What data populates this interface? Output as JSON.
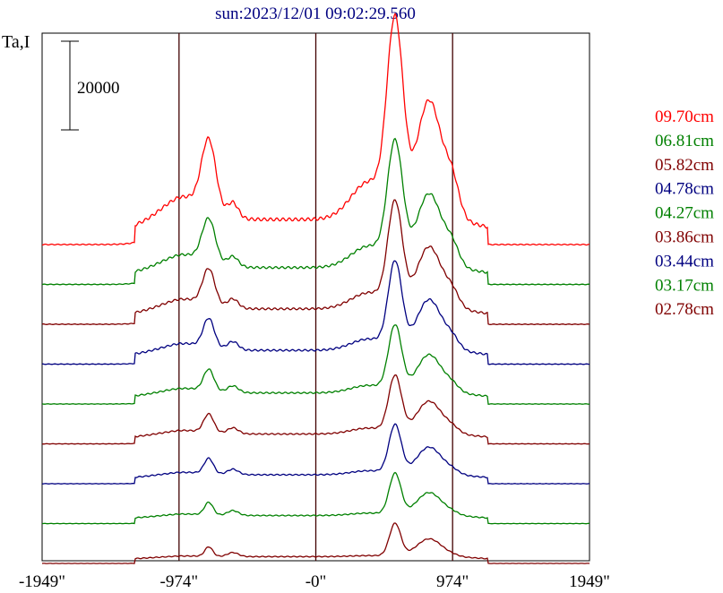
{
  "chart_data": {
    "type": "line",
    "title": "sun:2023/12/01 09:02:29.560",
    "ylabel": "Ta,I",
    "scale_bar_label": "20000",
    "x_tick_labels": [
      "-1949\"",
      "-974\"",
      "-0\"",
      "974\"",
      "1949\""
    ],
    "xlim": [
      -1949,
      1949
    ],
    "vertical_reference_lines": [
      -974,
      0,
      974
    ],
    "grid": false,
    "legend_position": "right",
    "colors": {
      "title": "#000080",
      "red": "#ff0000",
      "green": "#008000",
      "maroon": "#800000",
      "navy": "#000080",
      "axis": "#000000",
      "ref_line": "#400000"
    },
    "series": [
      {
        "name": "09.70cm",
        "color": "#ff0000",
        "offset": 0,
        "amp": 1.0,
        "sharp": 0.0
      },
      {
        "name": "06.81cm",
        "color": "#008000",
        "offset": 1,
        "amp": 0.94,
        "sharp": 0.15
      },
      {
        "name": "05.82cm",
        "color": "#800000",
        "offset": 2,
        "amp": 0.86,
        "sharp": 0.3
      },
      {
        "name": "04.78cm",
        "color": "#000080",
        "offset": 3,
        "amp": 0.77,
        "sharp": 0.45
      },
      {
        "name": "04.27cm",
        "color": "#008000",
        "offset": 4,
        "amp": 0.62,
        "sharp": 0.55
      },
      {
        "name": "03.86cm",
        "color": "#800000",
        "offset": 5,
        "amp": 0.55,
        "sharp": 0.6
      },
      {
        "name": "03.44cm",
        "color": "#000080",
        "offset": 6,
        "amp": 0.5,
        "sharp": 0.7
      },
      {
        "name": "03.17cm",
        "color": "#008000",
        "offset": 7,
        "amp": 0.45,
        "sharp": 0.8
      },
      {
        "name": "02.78cm",
        "color": "#800000",
        "offset": 8,
        "amp": 0.38,
        "sharp": 0.9
      }
    ]
  }
}
